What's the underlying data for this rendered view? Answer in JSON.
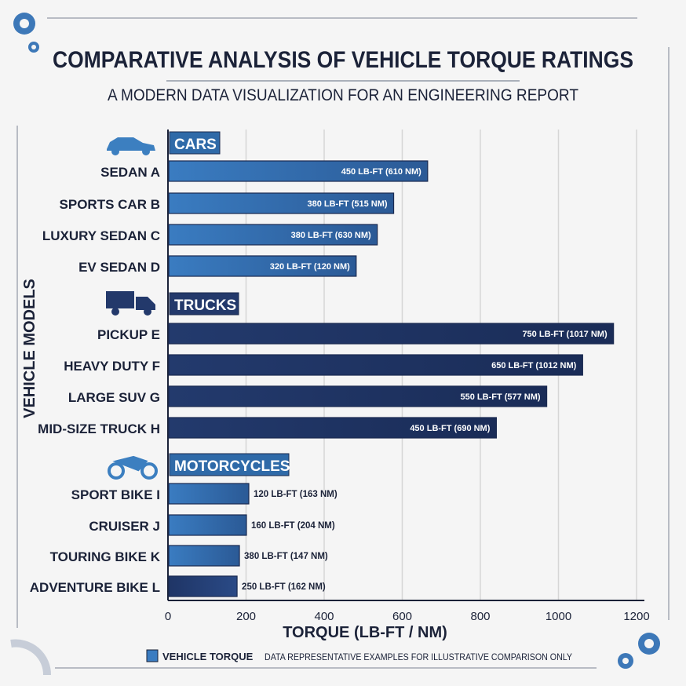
{
  "colors": {
    "car_bar": "#3a7cc1",
    "car_bar_end": "#2b5a96",
    "truck_bar": "#233a6d",
    "truck_bar_end": "#1a2c57",
    "moto_bar": "#3d80c4",
    "header_bg": "#2f6aa8",
    "truck_header_bg": "#23396b",
    "text": "#1b2238",
    "grid": "#d6d6d6",
    "icon": "#3c7fc0"
  },
  "chart_data": {
    "type": "bar",
    "orientation": "horizontal",
    "title": "COMPARATIVE ANALYSIS OF VEHICLE TORQUE RATINGS",
    "subtitle": "A MODERN DATA VISUALIZATION FOR AN ENGINEERING REPORT",
    "xlabel": "TORQUE (LB-FT / NM)",
    "ylabel": "VEHICLE MODELS",
    "xlim": [
      0,
      1200
    ],
    "xticks": [
      "0",
      "200",
      "400",
      "600",
      "800",
      "1000",
      "1200"
    ],
    "grid": true,
    "legend": {
      "placement": "bottom-left",
      "label": "VEHICLE TORQUE"
    },
    "note": "DATA REPRESENTATIVE EXAMPLES FOR ILLUSTRATIVE COMPARISON ONLY",
    "groups": [
      {
        "name": "CARS",
        "icon": "car-icon",
        "color": "car",
        "items": [
          {
            "label": "SEDAN  A",
            "value": 665,
            "data_label": "450 LB-FT (610 NM)",
            "label_inside": true
          },
          {
            "label": "SPORTS CAR  B",
            "value": 578,
            "data_label": "380 LB-FT (515 NM)",
            "label_inside": true
          },
          {
            "label": "LUXURY SEDAN  C",
            "value": 536,
            "data_label": "380 LB-FT (630 NM)",
            "label_inside": true
          },
          {
            "label": "EV SEDAN  D",
            "value": 482,
            "data_label": "320 LB-FT (120 NM)",
            "label_inside": true
          }
        ]
      },
      {
        "name": "TRUCKS",
        "icon": "truck-icon",
        "color": "truck",
        "items": [
          {
            "label": "PICKUP  E",
            "value": 1141,
            "data_label": "750 LB-FT (1017 NM)",
            "label_inside": true
          },
          {
            "label": "HEAVY DUTY  F",
            "value": 1062,
            "data_label": "650 LB-FT (1012 NM)",
            "label_inside": true
          },
          {
            "label": "LARGE SUV  G",
            "value": 970,
            "data_label": "550 LB-FT (577 NM)",
            "label_inside": true
          },
          {
            "label": "MID-SIZE TRUCK  H",
            "value": 841,
            "data_label": "450 LB-FT (690 NM)",
            "label_inside": true
          }
        ]
      },
      {
        "name": "MOTORCYCLES",
        "icon": "motorcycle-icon",
        "color": "car",
        "items": [
          {
            "label": "SPORT BIKE  I",
            "value": 207,
            "data_label": "120 LB-FT (163 NM)",
            "label_inside": false
          },
          {
            "label": "CRUISER  J",
            "value": 201,
            "data_label": "160 LB-FT (204 NM)",
            "label_inside": false
          },
          {
            "label": "TOURING BIKE  K",
            "value": 183,
            "data_label": "380 LB-FT (147 NM)",
            "label_inside": false
          },
          {
            "label": "ADVENTURE BIKE  L",
            "value": 177,
            "data_label": "250 LB-FT (162 NM)",
            "label_inside": false,
            "dark": true
          }
        ]
      }
    ]
  }
}
